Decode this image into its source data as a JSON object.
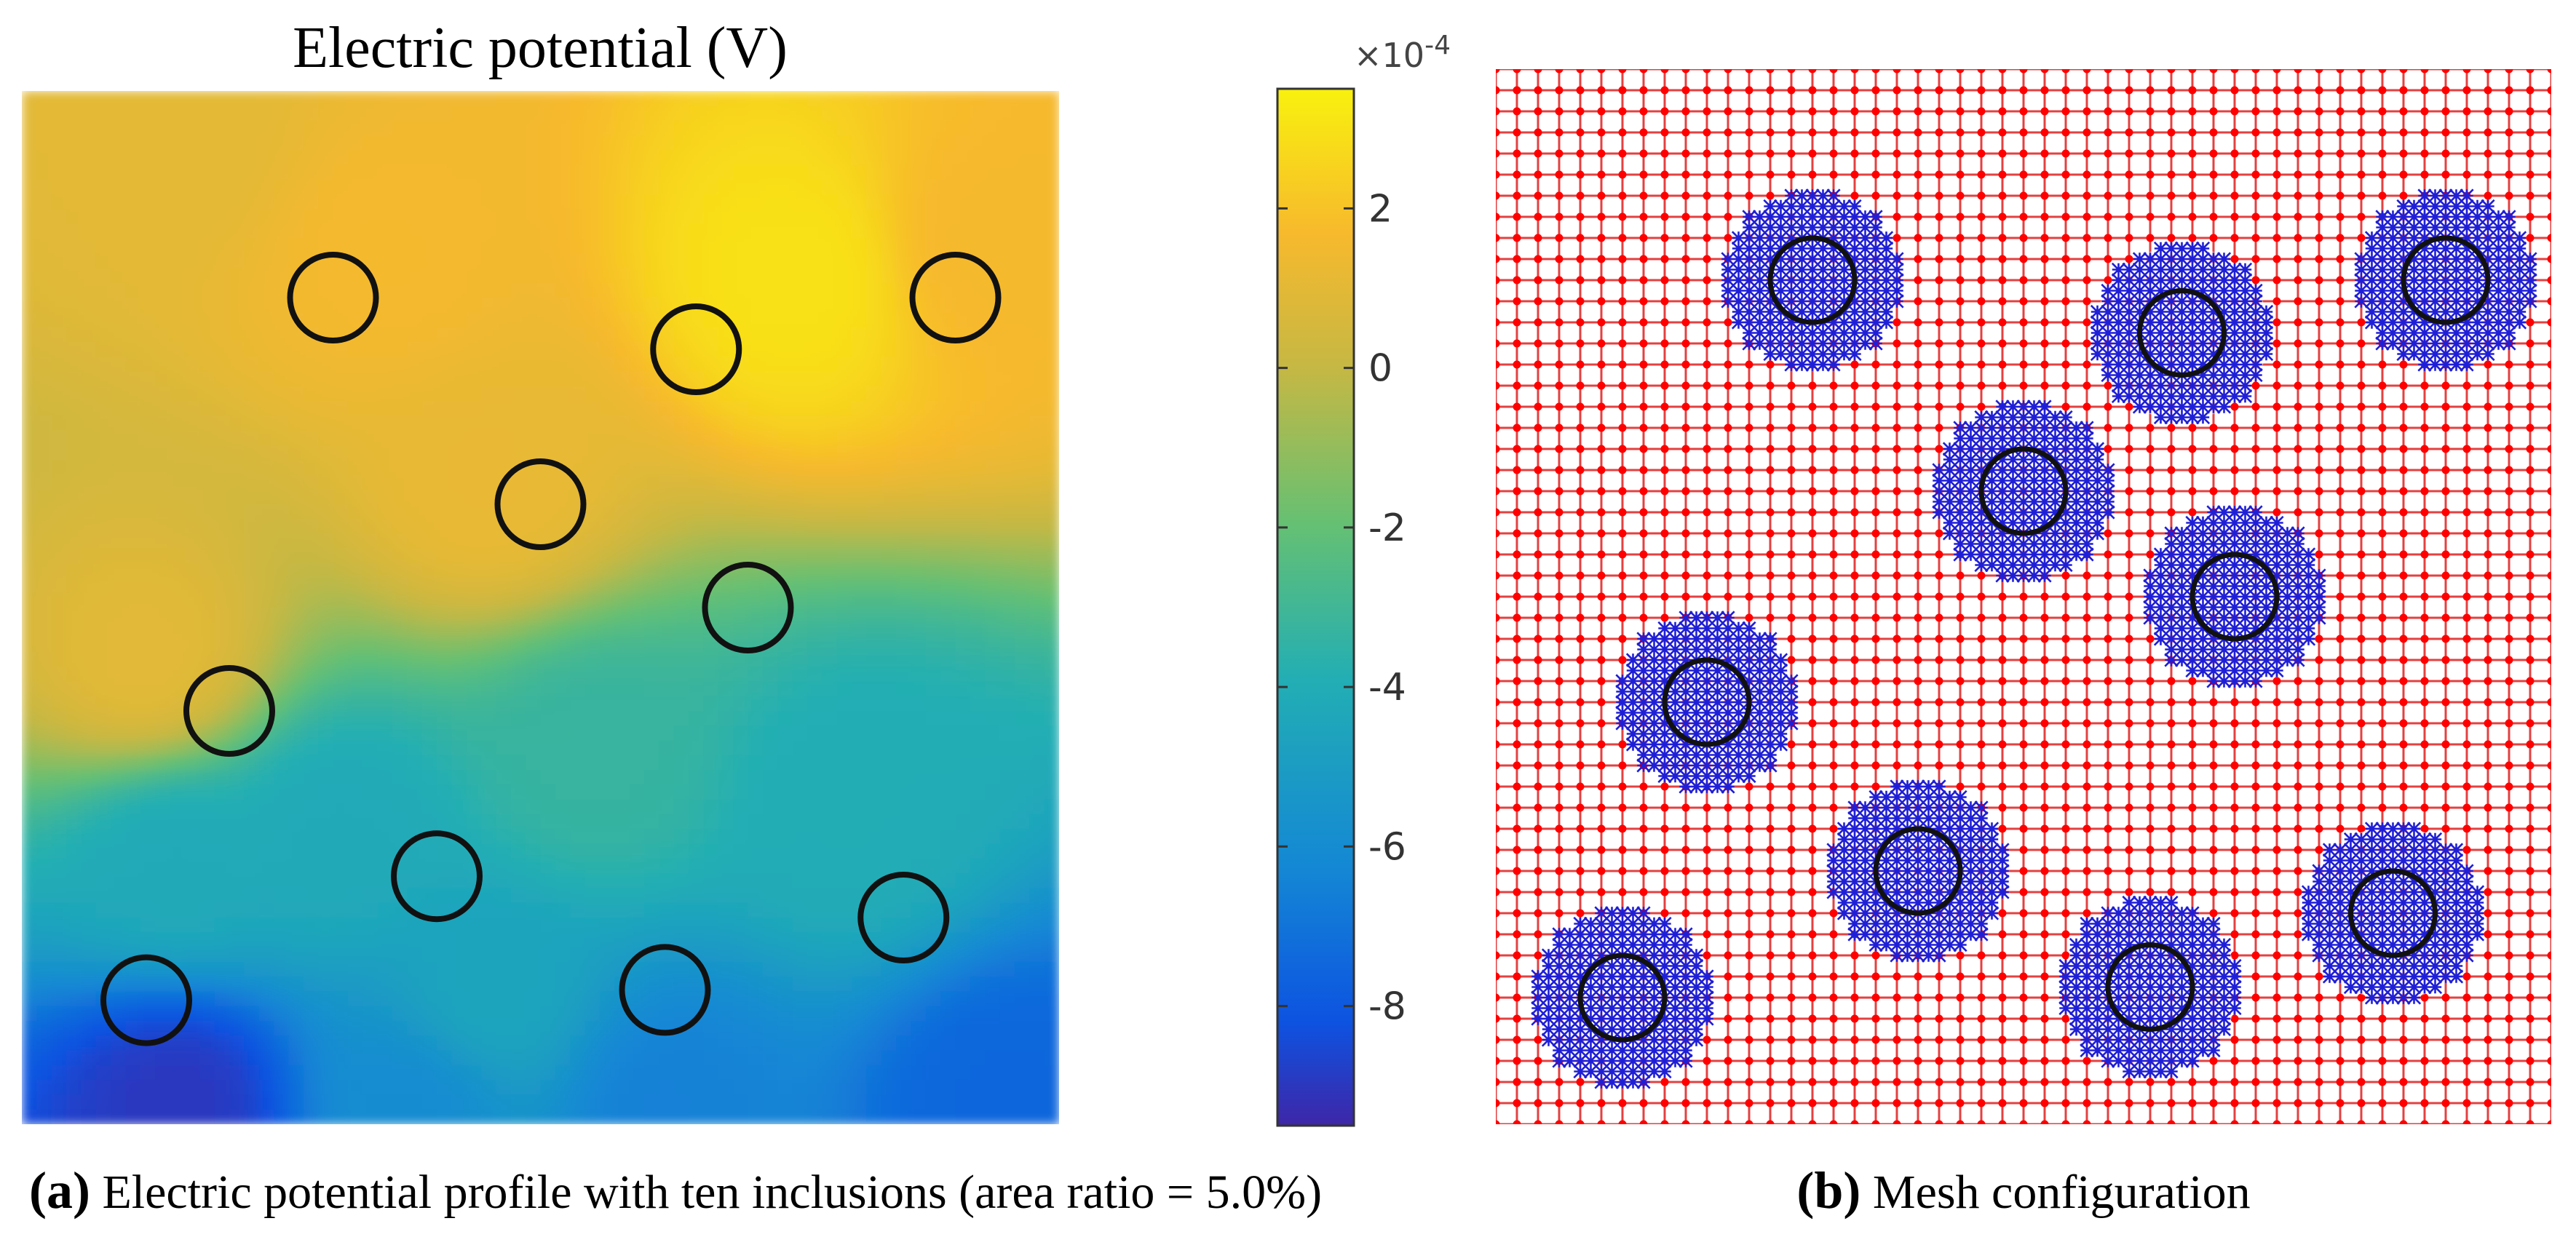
{
  "figure_a": {
    "title": "Electric potential (V)",
    "caption_label": "(a)",
    "caption_text": "Electric potential profile with ten inclusions (area ratio = 5.0%)"
  },
  "figure_b": {
    "caption_label": "(b)",
    "caption_text": "Mesh configuration"
  },
  "colorbar": {
    "exponent_prefix": "×10",
    "exponent": "-4",
    "tick_labels": [
      "2",
      "0",
      "-2",
      "-4",
      "-6",
      "-8"
    ],
    "tick_values": [
      2,
      0,
      -2,
      -4,
      -6,
      -8
    ],
    "range": [
      -9.5,
      3.5
    ]
  },
  "colors": {
    "colormap": [
      "#3e26a8",
      "#0d53e1",
      "#1488d4",
      "#22aeb4",
      "#65c073",
      "#c5b844",
      "#f7b92d",
      "#f8f10e"
    ],
    "mesh_node": "#ff0000",
    "mesh_line": "#e34141",
    "refined_mesh": "#1f1fd6",
    "inclusion_outline": "#111111"
  },
  "chart_data": [
    {
      "type": "heatmap",
      "title": "Electric potential (V)",
      "units": "V",
      "scale_factor": 0.0001,
      "domain": [
        [
          0,
          1
        ],
        [
          0,
          1
        ]
      ],
      "inclusions": [
        {
          "x": 0.3,
          "y": 0.8,
          "r": 0.04
        },
        {
          "x": 0.65,
          "y": 0.75,
          "r": 0.04
        },
        {
          "x": 0.9,
          "y": 0.8,
          "r": 0.04
        },
        {
          "x": 0.5,
          "y": 0.6,
          "r": 0.04
        },
        {
          "x": 0.7,
          "y": 0.5,
          "r": 0.04
        },
        {
          "x": 0.2,
          "y": 0.4,
          "r": 0.04
        },
        {
          "x": 0.4,
          "y": 0.24,
          "r": 0.04
        },
        {
          "x": 0.85,
          "y": 0.2,
          "r": 0.04
        },
        {
          "x": 0.12,
          "y": 0.12,
          "r": 0.04
        },
        {
          "x": 0.62,
          "y": 0.13,
          "r": 0.04
        }
      ],
      "field_sources": [
        {
          "x": 0.15,
          "y": 0.95,
          "value": 1.0
        },
        {
          "x": 0.35,
          "y": 0.84,
          "value": 1.6
        },
        {
          "x": 0.75,
          "y": 0.82,
          "value": 3.0
        },
        {
          "x": 0.93,
          "y": 0.85,
          "value": 1.6
        },
        {
          "x": 0.45,
          "y": 0.62,
          "value": 1.2
        },
        {
          "x": 0.12,
          "y": 0.45,
          "value": 1.0
        },
        {
          "x": 0.55,
          "y": 0.35,
          "value": -3.3
        },
        {
          "x": 0.3,
          "y": 0.28,
          "value": -4.2
        },
        {
          "x": 0.15,
          "y": 0.25,
          "value": -4.2
        },
        {
          "x": 0.8,
          "y": 0.3,
          "value": -4.0
        },
        {
          "x": 0.45,
          "y": 0.12,
          "value": -4.5
        },
        {
          "x": 0.15,
          "y": 0.02,
          "value": -9.0
        },
        {
          "x": 0.62,
          "y": 0.02,
          "value": -6.5
        },
        {
          "x": 0.95,
          "y": 0.02,
          "value": -7.5
        },
        {
          "x": 0.38,
          "y": 0.02,
          "value": -6.0
        }
      ],
      "colorbar_ticks": [
        2,
        0,
        -2,
        -4,
        -6,
        -8
      ],
      "colorbar_range": [
        -9.5,
        3.5
      ]
    },
    {
      "type": "mesh",
      "title": "Mesh configuration",
      "domain": [
        [
          0,
          1
        ],
        [
          0,
          1
        ]
      ],
      "grid_divisions": 50,
      "refinement_radius": 0.085,
      "inclusions": [
        {
          "x": 0.3,
          "y": 0.8,
          "r": 0.04
        },
        {
          "x": 0.65,
          "y": 0.75,
          "r": 0.04
        },
        {
          "x": 0.9,
          "y": 0.8,
          "r": 0.04
        },
        {
          "x": 0.5,
          "y": 0.6,
          "r": 0.04
        },
        {
          "x": 0.7,
          "y": 0.5,
          "r": 0.04
        },
        {
          "x": 0.2,
          "y": 0.4,
          "r": 0.04
        },
        {
          "x": 0.4,
          "y": 0.24,
          "r": 0.04
        },
        {
          "x": 0.85,
          "y": 0.2,
          "r": 0.04
        },
        {
          "x": 0.12,
          "y": 0.12,
          "r": 0.04
        },
        {
          "x": 0.62,
          "y": 0.13,
          "r": 0.04
        }
      ]
    }
  ]
}
